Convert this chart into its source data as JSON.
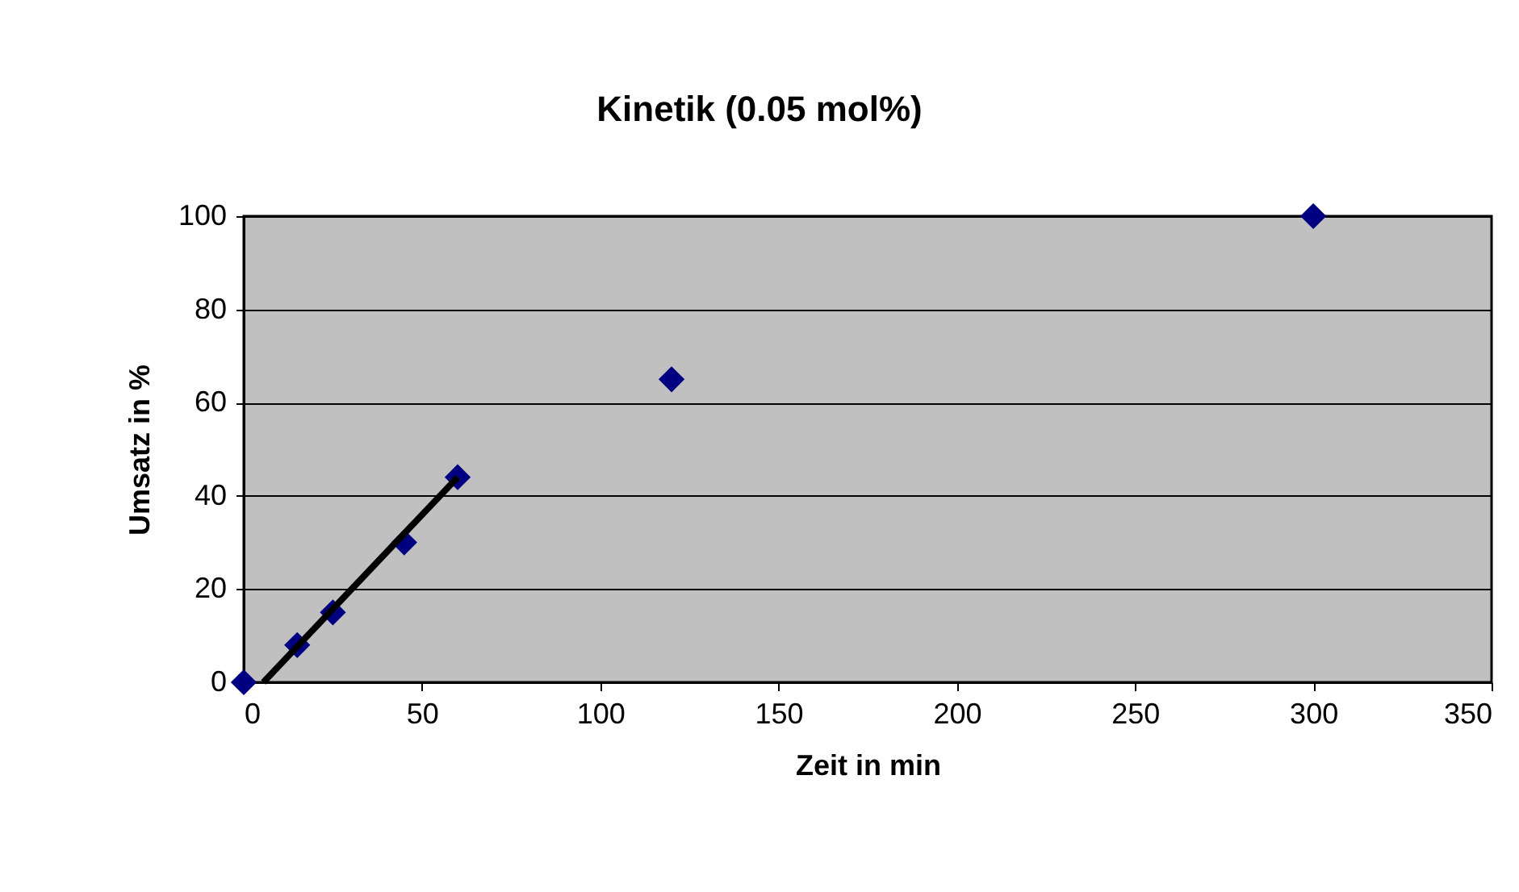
{
  "chart_data": {
    "type": "scatter",
    "title": "Kinetik (0.05 mol%)",
    "xlabel": "Zeit in min",
    "ylabel": "Umsatz in %",
    "x": [
      0,
      15,
      25,
      45,
      60,
      120,
      300
    ],
    "series": [
      {
        "type": "scatter",
        "color": "#000080",
        "marker": "diamond",
        "values": [
          0,
          8,
          15,
          30,
          44,
          65,
          100
        ]
      },
      {
        "type": "line",
        "color": "#000000",
        "x": [
          5.5,
          60
        ],
        "values": [
          0,
          44
        ],
        "line_style": "solid",
        "marker": "none"
      }
    ],
    "xlim": [
      0,
      350
    ],
    "xticks": [
      0,
      50,
      100,
      150,
      200,
      250,
      300,
      350
    ],
    "ylim": [
      0,
      100
    ],
    "yticks": [
      0,
      20,
      40,
      60,
      80,
      100
    ],
    "grid": "y"
  }
}
